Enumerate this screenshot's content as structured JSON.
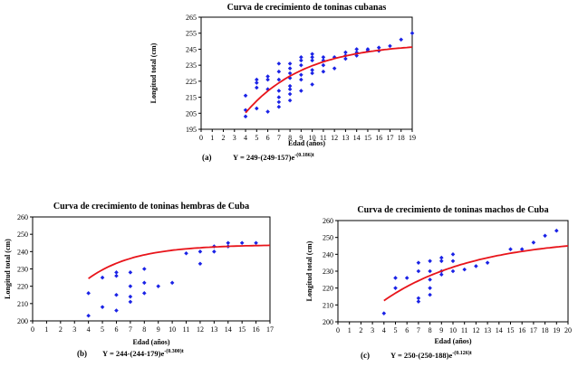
{
  "chart_data": [
    {
      "type": "scatter",
      "id": "a",
      "title": "Curva de crecimiento de toninas cubanas",
      "xlabel": "Edad (años)",
      "ylabel": "Longitud total (cm)",
      "xlim": [
        0,
        19
      ],
      "ylim": [
        195,
        265
      ],
      "xticks": [
        0,
        1,
        2,
        3,
        4,
        5,
        6,
        7,
        8,
        9,
        10,
        11,
        12,
        13,
        14,
        15,
        16,
        17,
        18,
        19
      ],
      "yticks": [
        195,
        205,
        215,
        225,
        235,
        245,
        255,
        265
      ],
      "caption_letter": "(a)",
      "equation": "Y = 249-(249-157)e",
      "equation_exponent": "-(0.186)t",
      "fit": {
        "Linf": 249,
        "L0": 157,
        "k": 0.186,
        "x_range": [
          4,
          19
        ],
        "color": "#e8141a"
      },
      "marker_color": "#1a22e6",
      "points": [
        [
          4,
          203
        ],
        [
          4,
          207
        ],
        [
          4,
          216
        ],
        [
          5,
          208
        ],
        [
          5,
          221
        ],
        [
          5,
          224
        ],
        [
          5,
          226
        ],
        [
          6,
          206
        ],
        [
          6,
          220
        ],
        [
          6,
          226
        ],
        [
          6,
          228
        ],
        [
          7,
          209
        ],
        [
          7,
          212
        ],
        [
          7,
          215
        ],
        [
          7,
          219
        ],
        [
          7,
          226
        ],
        [
          7,
          231
        ],
        [
          7,
          236
        ],
        [
          8,
          213
        ],
        [
          8,
          217
        ],
        [
          8,
          220
        ],
        [
          8,
          222
        ],
        [
          8,
          227
        ],
        [
          8,
          230
        ],
        [
          8,
          233
        ],
        [
          8,
          236
        ],
        [
          9,
          219
        ],
        [
          9,
          226
        ],
        [
          9,
          229
        ],
        [
          9,
          235
        ],
        [
          9,
          238
        ],
        [
          9,
          240
        ],
        [
          10,
          223
        ],
        [
          10,
          230
        ],
        [
          10,
          232
        ],
        [
          10,
          238
        ],
        [
          10,
          240
        ],
        [
          10,
          242
        ],
        [
          11,
          231
        ],
        [
          11,
          235
        ],
        [
          11,
          238
        ],
        [
          11,
          240
        ],
        [
          12,
          233
        ],
        [
          12,
          240
        ],
        [
          13,
          239
        ],
        [
          13,
          241
        ],
        [
          13,
          243
        ],
        [
          14,
          241
        ],
        [
          14,
          243
        ],
        [
          14,
          245
        ],
        [
          15,
          244
        ],
        [
          15,
          245
        ],
        [
          16,
          244
        ],
        [
          16,
          246
        ],
        [
          17,
          247
        ],
        [
          18,
          251
        ],
        [
          19,
          255
        ]
      ]
    },
    {
      "type": "scatter",
      "id": "b",
      "title": "Curva de crecimiento de toninas hembras de Cuba",
      "xlabel": "Edad (años)",
      "ylabel": "Longitud total (cm)",
      "xlim": [
        0,
        17
      ],
      "ylim": [
        200,
        260
      ],
      "xticks": [
        0,
        1,
        2,
        3,
        4,
        5,
        6,
        7,
        8,
        9,
        10,
        11,
        12,
        13,
        14,
        15,
        16,
        17
      ],
      "yticks": [
        200,
        210,
        220,
        230,
        240,
        250,
        260
      ],
      "caption_letter": "(b)",
      "equation": "Y = 244-(244-179)e",
      "equation_exponent": "-(0.300)t",
      "fit": {
        "Linf": 244,
        "L0": 179,
        "k": 0.3,
        "x_range": [
          4,
          17
        ],
        "color": "#e8141a"
      },
      "marker_color": "#1a22e6",
      "points": [
        [
          4,
          203
        ],
        [
          4,
          216
        ],
        [
          5,
          208
        ],
        [
          5,
          225
        ],
        [
          6,
          206
        ],
        [
          6,
          215
        ],
        [
          6,
          226
        ],
        [
          6,
          228
        ],
        [
          7,
          211
        ],
        [
          7,
          214
        ],
        [
          7,
          220
        ],
        [
          7,
          228
        ],
        [
          8,
          216
        ],
        [
          8,
          222
        ],
        [
          8,
          230
        ],
        [
          9,
          220
        ],
        [
          10,
          222
        ],
        [
          11,
          239
        ],
        [
          12,
          233
        ],
        [
          12,
          240
        ],
        [
          13,
          240
        ],
        [
          13,
          243
        ],
        [
          14,
          243
        ],
        [
          14,
          245
        ],
        [
          15,
          245
        ],
        [
          16,
          245
        ]
      ]
    },
    {
      "type": "scatter",
      "id": "c",
      "title": "Curva de crecimiento de toninas machos de Cuba",
      "xlabel": "Edad (años)",
      "ylabel": "Longitud total (cm)",
      "xlim": [
        0,
        20
      ],
      "ylim": [
        200,
        260
      ],
      "xticks": [
        0,
        1,
        2,
        3,
        4,
        5,
        6,
        7,
        8,
        9,
        10,
        11,
        12,
        13,
        14,
        15,
        16,
        17,
        18,
        19,
        20
      ],
      "yticks": [
        200,
        210,
        220,
        230,
        240,
        250,
        260
      ],
      "caption_letter": "(c)",
      "equation": "Y = 250-(250-188)e",
      "equation_exponent": "-(0.126)t",
      "fit": {
        "Linf": 250,
        "L0": 188,
        "k": 0.126,
        "x_range": [
          4,
          20
        ],
        "color": "#e8141a"
      },
      "marker_color": "#1a22e6",
      "points": [
        [
          4,
          205
        ],
        [
          5,
          220
        ],
        [
          5,
          226
        ],
        [
          6,
          226
        ],
        [
          7,
          212
        ],
        [
          7,
          214
        ],
        [
          7,
          230
        ],
        [
          7,
          235
        ],
        [
          8,
          216
        ],
        [
          8,
          220
        ],
        [
          8,
          225
        ],
        [
          8,
          230
        ],
        [
          8,
          236
        ],
        [
          9,
          228
        ],
        [
          9,
          230
        ],
        [
          9,
          236
        ],
        [
          9,
          238
        ],
        [
          10,
          230
        ],
        [
          10,
          236
        ],
        [
          10,
          240
        ],
        [
          11,
          231
        ],
        [
          12,
          233
        ],
        [
          13,
          235
        ],
        [
          15,
          243
        ],
        [
          16,
          243
        ],
        [
          17,
          247
        ],
        [
          18,
          251
        ],
        [
          19,
          254
        ]
      ]
    }
  ]
}
